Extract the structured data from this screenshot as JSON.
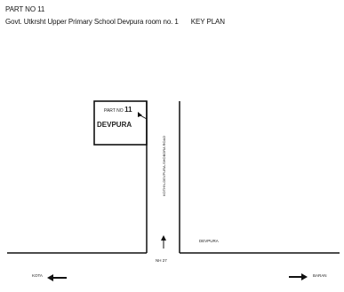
{
  "header": {
    "part_no": "PART NO 11",
    "school_title": "Govt. Utkrsht Upper Primary School Devpura room no. 1",
    "key_plan": "KEY PLAN"
  },
  "map": {
    "part_box": {
      "part_label": "PART NO",
      "part_number": "11",
      "village": "DEVPURA"
    },
    "road_vertical_label": "KOTHN-DEVPURA-SHOBDRA ROAD",
    "village_label": "DEVPURA",
    "road_bottom_label": "NH 27",
    "left_destination": "KOTA",
    "right_destination": "BARAN"
  },
  "colors": {
    "ink": "#111111",
    "background": "#ffffff"
  }
}
